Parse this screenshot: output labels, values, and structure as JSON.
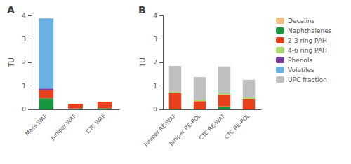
{
  "chart_data": [
    {
      "type": "bar",
      "title": "A",
      "stacked": true,
      "grid": false,
      "ylabel": "TU",
      "categories": [
        "Mass WAF",
        "Juniper WAF",
        "CTC WAF"
      ],
      "series": [
        {
          "name": "Decalins",
          "color": "#f0c080",
          "values": [
            0.0,
            0.0,
            0.0
          ]
        },
        {
          "name": "Naphthalenes",
          "color": "#1a9641",
          "values": [
            0.47,
            0.04,
            0.05
          ]
        },
        {
          "name": "2-3 ring PAH",
          "color": "#e8401c",
          "values": [
            0.35,
            0.2,
            0.28
          ]
        },
        {
          "name": "4-6 ring PAH",
          "color": "#a8d870",
          "values": [
            0.0,
            0.0,
            0.0
          ]
        },
        {
          "name": "Phenols",
          "color": "#7b3fa0",
          "values": [
            0.07,
            0.0,
            0.0
          ]
        },
        {
          "name": "Volatiles",
          "color": "#6ab0e0",
          "values": [
            2.98,
            0.0,
            0.0
          ]
        },
        {
          "name": "UPC fraction",
          "color": "#c0c0c0",
          "values": [
            0.0,
            0.0,
            0.0
          ]
        }
      ],
      "ylim": [
        0,
        4
      ],
      "yticks": [
        0,
        1,
        2,
        3,
        4
      ]
    },
    {
      "type": "bar",
      "title": "B",
      "stacked": true,
      "grid": false,
      "ylabel": "TU",
      "legend": "right",
      "categories": [
        "Juniper RE-WAF",
        "Juniper RE-POL",
        "CTC RE-WAF",
        "CTC RE-POL"
      ],
      "series": [
        {
          "name": "Decalins",
          "color": "#f0c080",
          "values": [
            0.0,
            0.0,
            0.0,
            0.0
          ]
        },
        {
          "name": "Naphthalenes",
          "color": "#1a9641",
          "values": [
            0.0,
            0.0,
            0.13,
            0.0
          ]
        },
        {
          "name": "2-3 ring PAH",
          "color": "#e8401c",
          "values": [
            0.7,
            0.35,
            0.5,
            0.45
          ]
        },
        {
          "name": "4-6 ring PAH",
          "color": "#a8d870",
          "values": [
            0.05,
            0.07,
            0.07,
            0.06
          ]
        },
        {
          "name": "Phenols",
          "color": "#7b3fa0",
          "values": [
            0.0,
            0.0,
            0.0,
            0.0
          ]
        },
        {
          "name": "Volatiles",
          "color": "#6ab0e0",
          "values": [
            0.0,
            0.0,
            0.0,
            0.0
          ]
        },
        {
          "name": "UPC fraction",
          "color": "#c0c0c0",
          "values": [
            1.1,
            0.95,
            1.13,
            0.75
          ]
        }
      ],
      "ylim": [
        0,
        4
      ],
      "yticks": [
        0,
        1,
        2,
        3,
        4
      ]
    }
  ]
}
